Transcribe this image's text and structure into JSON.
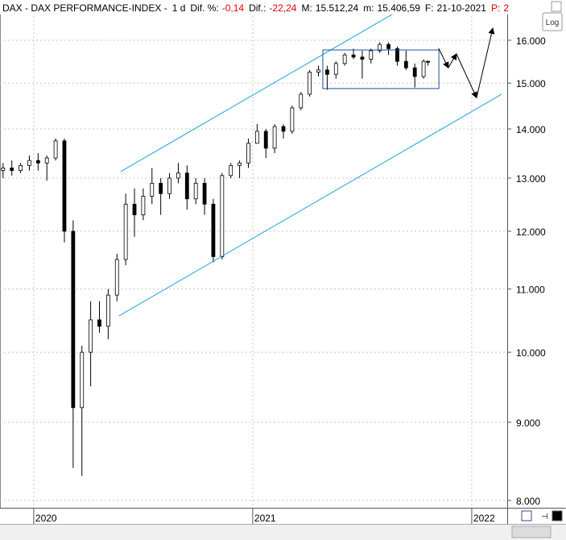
{
  "chart_data": {
    "type": "candlestick",
    "instrument": "DAX - DAX PERFORMANCE-INDEX -",
    "interval": "1 d",
    "info": [
      {
        "label": "Dif. %:",
        "value": "-0,14"
      },
      {
        "label": "Dif.:",
        "value": "-22,24"
      },
      {
        "label": "M:",
        "value": "15.512,24"
      },
      {
        "label": "m:",
        "value": "15.406,59"
      },
      {
        "label": "F:",
        "value": "21-10-2021"
      },
      {
        "label": "P:",
        "value": "2"
      }
    ],
    "log_button": "Log",
    "log_y": true,
    "grid": true,
    "xlim": [
      2019.846,
      2022.162
    ],
    "xticks": [
      2020,
      2021,
      2022
    ],
    "ylim": [
      7912,
      17001
    ],
    "yticks": [
      {
        "value": 8000,
        "label": "8.000"
      },
      {
        "value": 9000,
        "label": "9.000"
      },
      {
        "value": 10000,
        "label": "10.000"
      },
      {
        "value": 11000,
        "label": "11.000"
      },
      {
        "value": 12000,
        "label": "12.000"
      },
      {
        "value": 13000,
        "label": "13.000"
      },
      {
        "value": 14000,
        "label": "14.000"
      },
      {
        "value": 15000,
        "label": "15.000"
      },
      {
        "value": 16000,
        "label": "16.000"
      }
    ],
    "candles": {
      "x": [
        2019.86,
        2019.9,
        2019.94,
        2019.98,
        2020.02,
        2020.06,
        2020.1,
        2020.14,
        2020.18,
        2020.22,
        2020.26,
        2020.3,
        2020.34,
        2020.38,
        2020.42,
        2020.46,
        2020.5,
        2020.54,
        2020.58,
        2020.62,
        2020.66,
        2020.7,
        2020.74,
        2020.78,
        2020.82,
        2020.86,
        2020.9,
        2020.94,
        2020.98,
        2021.02,
        2021.06,
        2021.1,
        2021.14,
        2021.18,
        2021.22,
        2021.26,
        2021.3,
        2021.34,
        2021.38,
        2021.42,
        2021.46,
        2021.5,
        2021.54,
        2021.58,
        2021.62,
        2021.66,
        2021.7,
        2021.74,
        2021.78,
        2021.8
      ],
      "open": [
        13150,
        13200,
        13150,
        13250,
        13350,
        13300,
        13400,
        13750,
        12000,
        9200,
        10000,
        10500,
        10400,
        10900,
        11500,
        12500,
        12300,
        12650,
        12900,
        12700,
        13000,
        13100,
        12600,
        12900,
        12500,
        11550,
        13050,
        13250,
        13300,
        13700,
        13950,
        13600,
        14050,
        13950,
        14450,
        14750,
        15250,
        15300,
        15200,
        15450,
        15650,
        15600,
        15550,
        15750,
        15900,
        15800,
        15500,
        15350,
        15150,
        15500
      ],
      "high": [
        13300,
        13350,
        13300,
        13450,
        13500,
        13450,
        13800,
        13800,
        12200,
        10100,
        10800,
        10800,
        11000,
        11600,
        12700,
        12800,
        12800,
        13200,
        13000,
        13100,
        13300,
        13250,
        13000,
        13000,
        12600,
        13100,
        13300,
        13350,
        13800,
        14100,
        14000,
        14100,
        14100,
        14500,
        14800,
        15300,
        15400,
        15400,
        15500,
        15700,
        15800,
        15750,
        15800,
        15950,
        15950,
        15850,
        15750,
        15450,
        15550,
        15520
      ],
      "low": [
        13000,
        13050,
        13100,
        13150,
        13150,
        12950,
        13350,
        11800,
        8400,
        8300,
        9500,
        10300,
        10200,
        10800,
        11400,
        11900,
        12200,
        12500,
        12300,
        12600,
        12900,
        12400,
        12500,
        12300,
        11450,
        11500,
        13000,
        13000,
        13200,
        13700,
        13400,
        13500,
        13800,
        13900,
        14400,
        14700,
        15150,
        14850,
        15100,
        15400,
        15550,
        15100,
        15450,
        15700,
        15650,
        15400,
        15300,
        14900,
        15100,
        15400
      ],
      "close": [
        13200,
        13150,
        13250,
        13350,
        13300,
        13400,
        13750,
        12000,
        9200,
        10000,
        10500,
        10400,
        10900,
        11500,
        12500,
        12300,
        12650,
        12900,
        12700,
        13000,
        13100,
        12600,
        12900,
        12500,
        11550,
        13050,
        13250,
        13300,
        13700,
        13950,
        13600,
        14050,
        13950,
        14450,
        14750,
        15250,
        15300,
        15200,
        15450,
        15650,
        15600,
        15550,
        15750,
        15900,
        15800,
        15500,
        15350,
        15150,
        15500,
        15480
      ]
    },
    "lines": [
      {
        "x": [
          2020.397,
          2021.636
        ],
        "y": [
          13128,
          16634
        ],
        "color": "#1ea4d8"
      },
      {
        "x": [
          2020.39,
          2022.136
        ],
        "y": [
          10565,
          14750
        ],
        "color": "#1ea4d8"
      },
      {
        "x": [
          2021.32,
          2021.85,
          2021.85,
          2021.32,
          2021.32
        ],
        "y": [
          15768,
          15768,
          14877,
          14877,
          15768
        ],
        "color": "#1f4e9a"
      }
    ],
    "projection": {
      "x": [
        2021.849,
        2021.893,
        2021.93,
        2022.022,
        2022.096
      ],
      "y": [
        15806,
        15350,
        15675,
        14674,
        16294
      ],
      "color": "#000000"
    }
  }
}
